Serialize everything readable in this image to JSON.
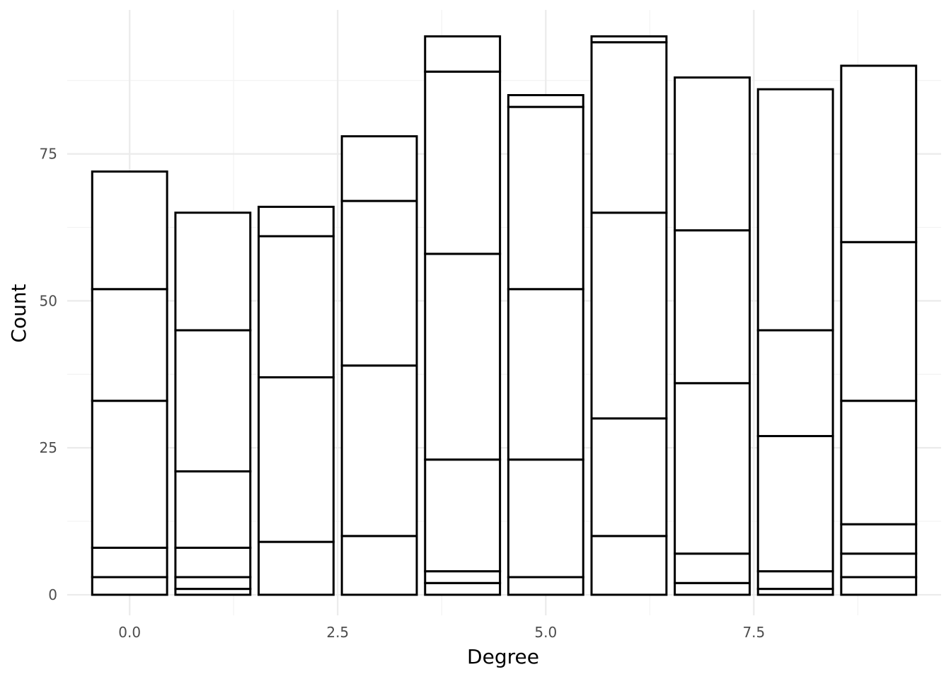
{
  "chart_data": {
    "type": "bar",
    "stacked": true,
    "xlabel": "Degree",
    "ylabel": "Count",
    "x": [
      0,
      1,
      2,
      3,
      4,
      5,
      6,
      7,
      8,
      9
    ],
    "xlim": [
      -0.75,
      9.75
    ],
    "ylim": [
      -3.5,
      99.5
    ],
    "x_ticks": [
      0,
      2.5,
      5,
      7.5
    ],
    "x_tick_labels": [
      "0.0",
      "2.5",
      "5.0",
      "7.5"
    ],
    "y_ticks": [
      0,
      25,
      50,
      75
    ],
    "y_tick_labels": [
      "0",
      "25",
      "50",
      "75"
    ],
    "bar_width": 0.9,
    "stack_boundaries": [
      [
        0,
        3,
        8,
        33,
        52,
        72
      ],
      [
        0,
        1,
        3,
        8,
        21,
        45,
        65
      ],
      [
        0,
        9,
        37,
        61,
        66
      ],
      [
        0,
        10,
        39,
        67,
        78
      ],
      [
        0,
        2,
        4,
        23,
        58,
        89,
        95
      ],
      [
        0,
        3,
        23,
        52,
        83,
        85
      ],
      [
        0,
        10,
        30,
        65,
        94,
        95
      ],
      [
        0,
        2,
        7,
        36,
        62,
        88
      ],
      [
        0,
        1,
        4,
        27,
        45,
        86
      ],
      [
        0,
        3,
        7,
        12,
        33,
        60,
        90
      ]
    ],
    "totals": [
      72,
      65,
      66,
      78,
      95,
      85,
      95,
      88,
      86,
      90
    ],
    "fill_color": "#ffffff",
    "edge_color": "#000000",
    "grid": true,
    "legend": "none"
  }
}
